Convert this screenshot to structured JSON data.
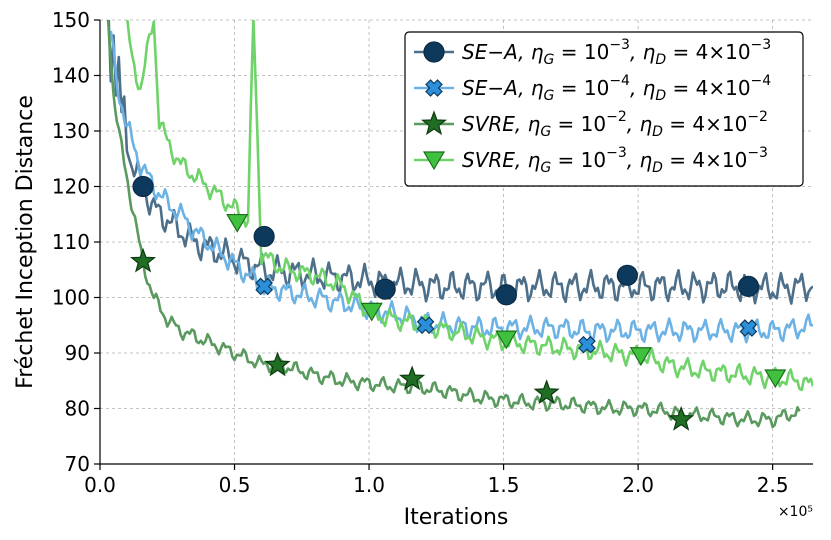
{
  "chart_data": {
    "type": "line",
    "title": "",
    "xlabel": "Iterations",
    "ylabel": "Fréchet Inception Distance",
    "x_multiplier_label": "×10⁵",
    "xlim": [
      0,
      2.65
    ],
    "ylim": [
      70,
      150
    ],
    "x_ticks": [
      0.0,
      0.5,
      1.0,
      1.5,
      2.0,
      2.5
    ],
    "x_tick_labels": [
      "0.0",
      "0.5",
      "1.0",
      "1.5",
      "2.0",
      "2.5"
    ],
    "y_ticks": [
      70,
      80,
      90,
      100,
      110,
      120,
      130,
      140,
      150
    ],
    "y_tick_labels": [
      "70",
      "80",
      "90",
      "100",
      "110",
      "120",
      "130",
      "140",
      "150"
    ],
    "grid": true,
    "legend_position": "top-right",
    "series": [
      {
        "name": "SE−A, ηG = 10⁻³, ηD = 4×10⁻³",
        "legend": {
          "method": "SE−A",
          "eta_g_exp": "−3",
          "eta_d": "4×10",
          "eta_d_exp": "−3"
        },
        "color": "#0d3a5c",
        "line_color": "#4d6f89",
        "marker": "circle",
        "x": [
          0.03,
          0.04,
          0.05,
          0.06,
          0.07,
          0.08,
          0.09,
          0.1,
          0.12,
          0.14,
          0.16,
          0.2,
          0.25,
          0.3,
          0.35,
          0.4,
          0.45,
          0.5,
          0.55,
          0.61,
          0.7,
          0.8,
          0.9,
          1.0,
          1.06,
          1.15,
          1.25,
          1.35,
          1.45,
          1.51,
          1.6,
          1.7,
          1.8,
          1.9,
          1.96,
          2.05,
          2.15,
          2.25,
          2.35,
          2.41,
          2.5,
          2.6,
          2.65
        ],
        "y": [
          152,
          140,
          150,
          136,
          143,
          132,
          134,
          128,
          124,
          122,
          120,
          116,
          114,
          112,
          110,
          109,
          108,
          107,
          106,
          105,
          104.5,
          104,
          103.5,
          103,
          102.5,
          102.5,
          102,
          102,
          102,
          101.5,
          102,
          102,
          102,
          102,
          102,
          102,
          102,
          102,
          102,
          102,
          101.5,
          102,
          102
        ],
        "markers_x": [
          0.16,
          0.61,
          1.06,
          1.51,
          1.96,
          2.41
        ],
        "markers_y": [
          120,
          111,
          101.5,
          100.5,
          104,
          102
        ]
      },
      {
        "name": "SE−A, ηG = 10⁻⁴, ηD = 4×10⁻⁴",
        "legend": {
          "method": "SE−A",
          "eta_g_exp": "−4",
          "eta_d": "4×10",
          "eta_d_exp": "−4"
        },
        "color": "#2b8fd9",
        "line_color": "#6cb2e4",
        "marker": "x",
        "x": [
          0.04,
          0.06,
          0.08,
          0.1,
          0.12,
          0.15,
          0.2,
          0.25,
          0.3,
          0.35,
          0.4,
          0.45,
          0.5,
          0.55,
          0.61,
          0.7,
          0.8,
          0.9,
          1.0,
          1.1,
          1.21,
          1.3,
          1.4,
          1.5,
          1.6,
          1.7,
          1.81,
          1.9,
          2.0,
          2.1,
          2.2,
          2.3,
          2.41,
          2.5,
          2.6,
          2.65
        ],
        "y": [
          148,
          139,
          135,
          131,
          128,
          124,
          120,
          117,
          115,
          112,
          110,
          108,
          106,
          104,
          102,
          101,
          100,
          99,
          98,
          97,
          95.5,
          95,
          94.5,
          94.5,
          94.5,
          94.5,
          94,
          94,
          94,
          94,
          94,
          94,
          94,
          94,
          94.5,
          95
        ],
        "markers_x": [
          0.61,
          1.21,
          1.81,
          2.41
        ],
        "markers_y": [
          102,
          95,
          91.5,
          94.5
        ]
      },
      {
        "name": "SVRE, ηG = 10⁻², ηD = 4×10⁻²",
        "legend": {
          "method": "SVRE",
          "eta_g_exp": "−2",
          "eta_d": "4×10",
          "eta_d_exp": "−2"
        },
        "color": "#1f6e23",
        "line_color": "#5a9a5f",
        "marker": "star",
        "x": [
          0.03,
          0.05,
          0.07,
          0.09,
          0.11,
          0.13,
          0.16,
          0.2,
          0.25,
          0.3,
          0.35,
          0.4,
          0.5,
          0.6,
          0.66,
          0.8,
          0.9,
          1.0,
          1.1,
          1.16,
          1.3,
          1.4,
          1.5,
          1.6,
          1.66,
          1.8,
          1.9,
          2.0,
          2.1,
          2.16,
          2.3,
          2.4,
          2.5,
          2.6
        ],
        "y": [
          150,
          137,
          130,
          124,
          119,
          114,
          106,
          100,
          96,
          94,
          93,
          92,
          90,
          88,
          88,
          86,
          85,
          84.5,
          84,
          84,
          83,
          82,
          81.5,
          81,
          81,
          80.5,
          80,
          80,
          79.5,
          79,
          78.5,
          78,
          78,
          79.5
        ],
        "markers_x": [
          0.16,
          0.66,
          1.16,
          1.66,
          2.16
        ],
        "markers_y": [
          106.5,
          87.8,
          85.3,
          82.8,
          78
        ]
      },
      {
        "name": "SVRE, ηG = 10⁻³, ηD = 4×10⁻³",
        "legend": {
          "method": "SVRE",
          "eta_g_exp": "−3",
          "eta_d": "4×10",
          "eta_d_exp": "−3"
        },
        "color": "#3fc13f",
        "line_color": "#6fd36a",
        "marker": "triangle-down",
        "x": [
          0.1,
          0.12,
          0.15,
          0.2,
          0.22,
          0.25,
          0.3,
          0.35,
          0.4,
          0.45,
          0.5,
          0.55,
          0.57,
          0.6,
          0.65,
          0.7,
          0.8,
          0.9,
          1.01,
          1.1,
          1.2,
          1.3,
          1.4,
          1.51,
          1.6,
          1.7,
          1.8,
          1.9,
          2.01,
          2.1,
          2.2,
          2.3,
          2.4,
          2.51,
          2.6,
          2.65
        ],
        "y": [
          150,
          142,
          138,
          150,
          132,
          128,
          124,
          122,
          120,
          118,
          116,
          114,
          150,
          108,
          106,
          105,
          104,
          102,
          97,
          96,
          95,
          94,
          93,
          92,
          91.5,
          91,
          90.5,
          90,
          89.5,
          88,
          87,
          86.5,
          86,
          85.5,
          85,
          84
        ],
        "markers_x": [
          0.51,
          1.01,
          1.51,
          2.01,
          2.51
        ],
        "markers_y": [
          113.5,
          97.5,
          92.5,
          89.5,
          85.5
        ]
      }
    ]
  }
}
